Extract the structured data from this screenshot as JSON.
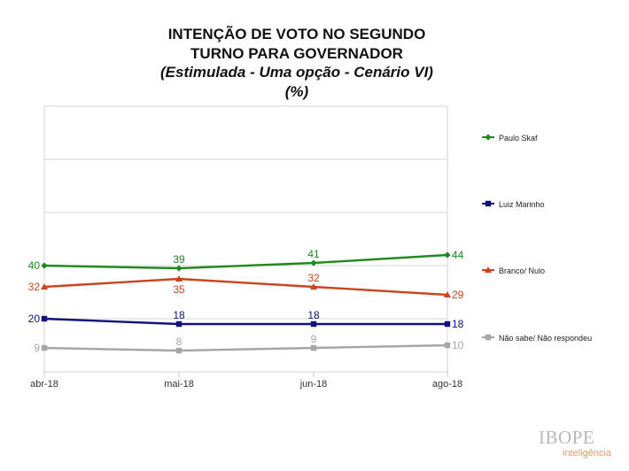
{
  "header": {
    "title_line1": "INTENÇÃO DE VOTO NO SEGUNDO",
    "title_line2": "TURNO PARA GOVERNADOR",
    "subtitle": "(Estimulada - Uma opção - Cenário VI)",
    "unit": "(%)"
  },
  "chart_data": {
    "type": "line",
    "title": "INTENÇÃO DE VOTO NO SEGUNDO TURNO PARA GOVERNADOR",
    "subtitle": "(Estimulada - Uma opção - Cenário VI) (%)",
    "categories": [
      "abr-18",
      "mai-18",
      "jun-18",
      "ago-18"
    ],
    "ylim": [
      0,
      100
    ],
    "grid": true,
    "legend_position": "right",
    "series": [
      {
        "name": "Paulo Skaf",
        "values": [
          40,
          39,
          41,
          44
        ],
        "color": "#1e8a1e",
        "marker": "diamond"
      },
      {
        "name": "Luiz Marinho",
        "values": [
          20,
          18,
          18,
          18
        ],
        "color": "#12127a",
        "marker": "square"
      },
      {
        "name": "Branco/ Nulo",
        "values": [
          32,
          35,
          32,
          29
        ],
        "color": "#c8461e",
        "marker": "triangle"
      },
      {
        "name": "Não sabe/ Não respondeu",
        "values": [
          9,
          8,
          9,
          10
        ],
        "color": "#a6a6a6",
        "marker": "square"
      }
    ]
  },
  "branding": {
    "name": "IBOPE",
    "sub": "inteligência"
  }
}
